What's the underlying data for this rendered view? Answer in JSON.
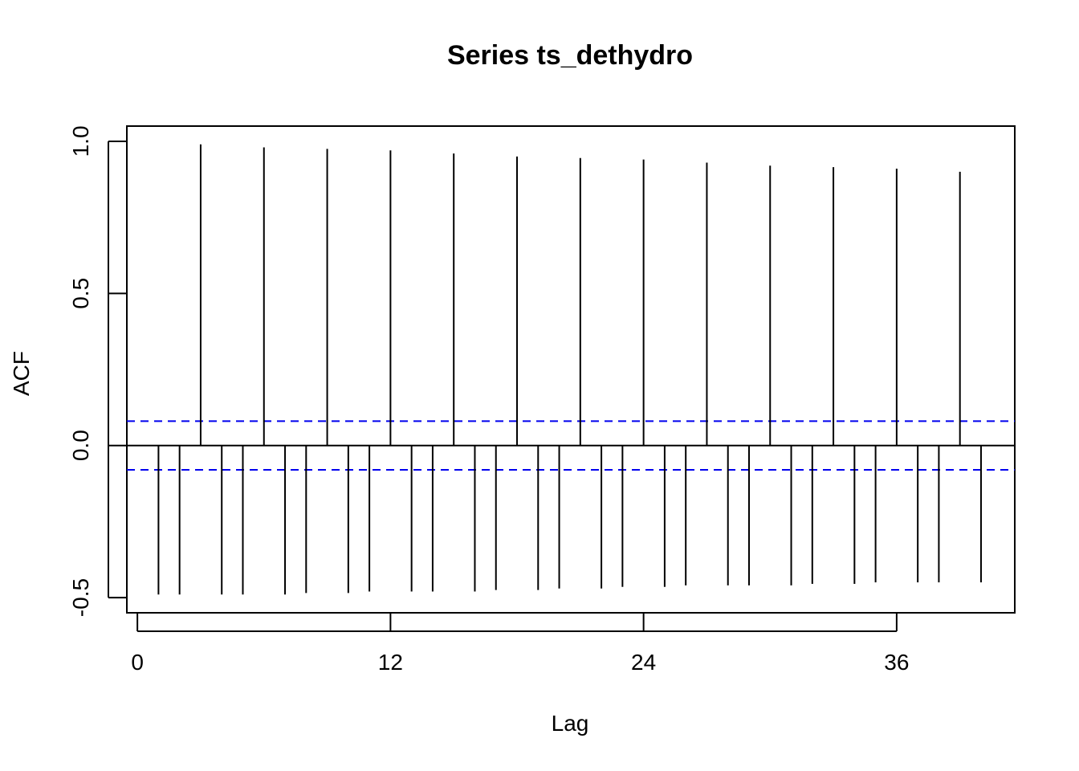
{
  "chart_data": {
    "type": "bar",
    "title": "Series  ts_dethydro",
    "xlabel": "Lag",
    "ylabel": "ACF",
    "xlim": [
      -0.5,
      41.6
    ],
    "ylim": [
      -0.55,
      1.05
    ],
    "x_ticks": [
      0,
      12,
      24,
      36
    ],
    "x_tick_labels": [
      "0",
      "12",
      "24",
      "36"
    ],
    "y_ticks": [
      -0.5,
      0.0,
      0.5,
      1.0
    ],
    "y_tick_labels": [
      "-0.5",
      "0.0",
      "0.5",
      "1.0"
    ],
    "grid": false,
    "legend": "none",
    "x": [
      1,
      2,
      3,
      4,
      5,
      6,
      7,
      8,
      9,
      10,
      11,
      12,
      13,
      14,
      15,
      16,
      17,
      18,
      19,
      20,
      21,
      22,
      23,
      24,
      25,
      26,
      27,
      28,
      29,
      30,
      31,
      32,
      33,
      34,
      35,
      36,
      37,
      38,
      39,
      40
    ],
    "values": [
      -0.49,
      -0.49,
      0.99,
      -0.49,
      -0.49,
      0.98,
      -0.49,
      -0.485,
      0.975,
      -0.485,
      -0.48,
      0.97,
      -0.48,
      -0.48,
      0.96,
      -0.48,
      -0.475,
      0.95,
      -0.475,
      -0.47,
      0.945,
      -0.47,
      -0.465,
      0.94,
      -0.465,
      -0.46,
      0.93,
      -0.46,
      -0.46,
      0.92,
      -0.46,
      -0.455,
      0.915,
      -0.455,
      -0.45,
      0.91,
      -0.45,
      -0.45,
      0.9,
      -0.45
    ],
    "confidence_bound": 0.08,
    "colors": {
      "bars": "#000000",
      "confidence_lines": "#0000ee",
      "axes": "#000000"
    }
  }
}
